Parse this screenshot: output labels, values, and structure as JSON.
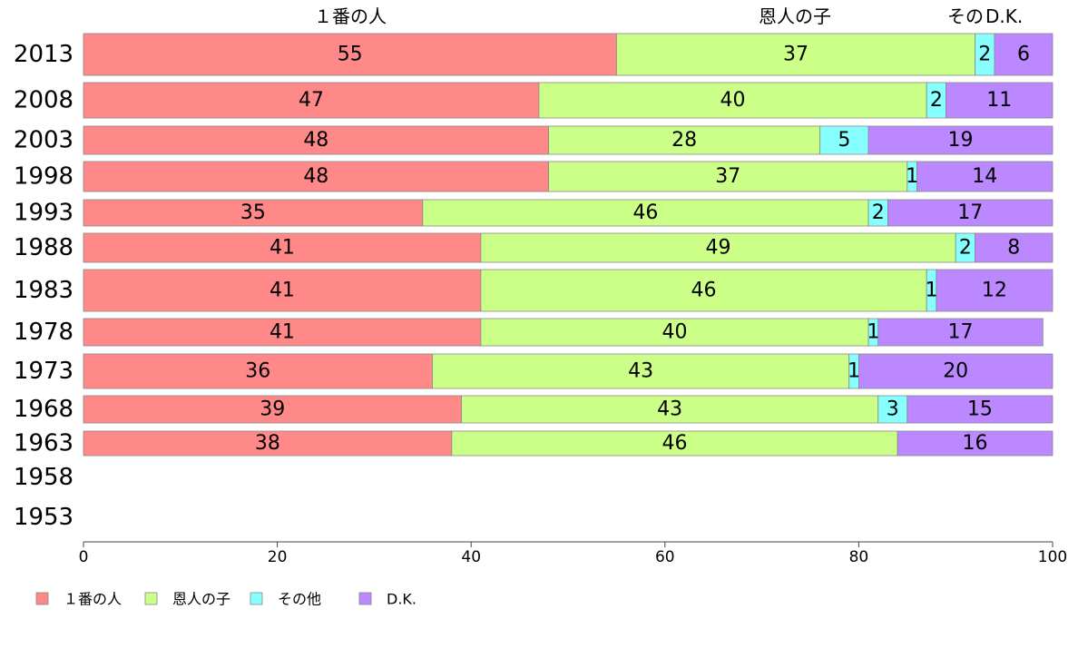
{
  "chart_data": {
    "type": "bar",
    "orientation": "horizontal",
    "stacked": true,
    "categories": [
      "2013",
      "2008",
      "2003",
      "1998",
      "1993",
      "1988",
      "1983",
      "1978",
      "1973",
      "1968",
      "1963",
      "1958",
      "1953"
    ],
    "series": [
      {
        "name": "１番の人",
        "color": "#ff8888",
        "values": [
          55,
          47,
          48,
          48,
          35,
          41,
          41,
          41,
          36,
          39,
          38,
          null,
          null
        ]
      },
      {
        "name": "恩人の子",
        "color": "#ccff88",
        "values": [
          37,
          40,
          28,
          37,
          46,
          49,
          46,
          40,
          43,
          43,
          46,
          null,
          null
        ]
      },
      {
        "name": "その他",
        "color": "#88ffff",
        "values": [
          2,
          2,
          5,
          1,
          2,
          2,
          1,
          1,
          1,
          3,
          0,
          null,
          null
        ]
      },
      {
        "name": "D.K.",
        "color": "#bb88ff",
        "values": [
          6,
          11,
          19,
          14,
          17,
          8,
          12,
          17,
          20,
          15,
          16,
          null,
          null
        ]
      }
    ],
    "xlim": [
      0,
      100
    ],
    "xticks": [
      0,
      20,
      40,
      60,
      80,
      100
    ],
    "header_labels": [
      "１番の人",
      "恩人の子",
      "その他",
      "D.K."
    ],
    "legend_position": "bottom-left",
    "grid": false
  }
}
